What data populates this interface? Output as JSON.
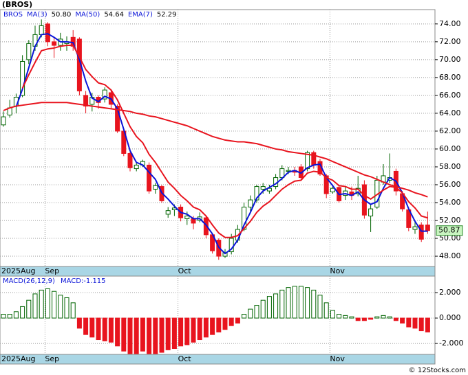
{
  "chart_data": [
    {
      "type": "candlestick",
      "title": "(BROS)",
      "symbol": "BROS",
      "categories": [
        "2025Aug",
        null,
        null,
        null,
        null,
        null,
        null,
        "Sep",
        null,
        null,
        null,
        null,
        null,
        null,
        null,
        null,
        null,
        null,
        null,
        null,
        null,
        null,
        null,
        null,
        null,
        null,
        null,
        null,
        "Oct",
        null,
        null,
        null,
        null,
        null,
        null,
        null,
        null,
        null,
        null,
        null,
        null,
        null,
        null,
        null,
        null,
        null,
        null,
        null,
        null,
        null,
        null,
        null,
        "Nov",
        null,
        null,
        null,
        null,
        null,
        null,
        null,
        null,
        null,
        null,
        null,
        null,
        null,
        null,
        null
      ],
      "open": [
        62.7,
        63.8,
        64.8,
        66,
        70,
        71.5,
        72.8,
        74,
        72,
        71.6,
        71.8,
        72.5,
        72.3,
        66,
        65,
        65.8,
        65.6,
        66.3,
        64.8,
        62,
        59.5,
        57.8,
        58.2,
        58.2,
        55.5,
        55.8,
        52.7,
        53.2,
        53.5,
        52.2,
        52.2,
        52,
        52.3,
        50.4,
        49.8,
        48,
        48.5,
        49.8,
        51,
        53.5,
        54.3,
        55.5,
        55.3,
        55.8,
        56.8,
        57.5,
        57.6,
        58,
        57.8,
        59.6,
        58.6,
        57,
        55.2,
        55.7,
        54.8,
        55.2,
        55,
        56,
        52.5,
        53.5,
        56.3,
        56.5,
        57.5,
        55,
        53.2,
        51,
        51.5,
        51.5
      ],
      "high": [
        64.2,
        65.5,
        66.2,
        70.5,
        72.2,
        73.8,
        74.5,
        74.2,
        72.5,
        73,
        72.6,
        73.3,
        72.5,
        66.5,
        66.3,
        66,
        66.9,
        66.5,
        65,
        62.3,
        59.8,
        58.5,
        58.8,
        58.5,
        56.2,
        56,
        53.5,
        53.8,
        53.8,
        53,
        52.5,
        52.9,
        52.5,
        50.5,
        50,
        48.8,
        50.5,
        51.5,
        54,
        54.8,
        56,
        56.2,
        56,
        57.2,
        58.2,
        58,
        58,
        58.3,
        59.8,
        59.8,
        58.9,
        57.2,
        56,
        56,
        55.8,
        55.8,
        57,
        56.5,
        53.8,
        57,
        58.3,
        59.5,
        57.8,
        55.3,
        53.5,
        52,
        51.8,
        53
      ],
      "low": [
        62.5,
        63.5,
        64,
        65.8,
        69.5,
        71,
        72.5,
        71.5,
        70.2,
        71,
        71,
        71,
        66,
        64,
        64.2,
        64.5,
        65.2,
        64.5,
        61.8,
        59.2,
        57.5,
        57.5,
        58,
        55,
        55,
        54,
        52.3,
        52.5,
        51.9,
        51.5,
        51,
        51.8,
        50,
        48.3,
        47.6,
        47.8,
        48.2,
        49.5,
        50.8,
        53,
        54,
        55,
        55,
        55.5,
        56.5,
        57.2,
        57,
        56.5,
        57.5,
        57.8,
        57,
        54.5,
        55,
        54,
        54.3,
        54.3,
        54.7,
        52.2,
        50.7,
        53.3,
        56,
        56.2,
        54.8,
        53,
        50.8,
        50.5,
        49.6,
        50.5
      ],
      "close": [
        63.6,
        64.6,
        65.8,
        69.8,
        71.8,
        72.8,
        73.8,
        72,
        71.6,
        72.3,
        72,
        71.5,
        66.5,
        64.8,
        65.8,
        65.2,
        66.6,
        65,
        62,
        59.5,
        57.9,
        58.2,
        58.6,
        55.3,
        55.9,
        54.2,
        53.1,
        53.4,
        52.3,
        52.5,
        51.7,
        52.4,
        50.4,
        48.6,
        48,
        48.4,
        50,
        51,
        53.5,
        54.3,
        55.8,
        55.8,
        55.6,
        56.8,
        57.8,
        57.6,
        57.4,
        56.8,
        59.6,
        58.2,
        57.2,
        55,
        55.6,
        54.2,
        55.3,
        54.8,
        55.6,
        52.6,
        53.3,
        56.5,
        57,
        56.8,
        55.3,
        53.3,
        51.2,
        51.3,
        49.9,
        50.87
      ],
      "last_price_label": "50.87",
      "up_color": "#006400",
      "down_color": "#e8141e",
      "lines": [
        {
          "name": "MA(3)",
          "value_label": "50.80",
          "color": "#0a14d8",
          "values": [
            null,
            null,
            64.7,
            66.7,
            69.1,
            71.5,
            72.8,
            72.9,
            72.5,
            72.0,
            72.0,
            71.9,
            70.0,
            67.6,
            65.7,
            65.3,
            65.9,
            65.6,
            64.5,
            62.2,
            59.8,
            58.5,
            58.2,
            57.4,
            56.6,
            55.1,
            54.4,
            53.6,
            52.9,
            52.7,
            52.2,
            52.2,
            51.5,
            50.5,
            49.0,
            48.3,
            48.8,
            49.8,
            51.5,
            52.9,
            54.5,
            55.3,
            55.7,
            56.1,
            56.7,
            57.4,
            57.6,
            57.3,
            57.9,
            58.2,
            58.3,
            56.8,
            55.9,
            54.9,
            55.0,
            54.8,
            55.2,
            54.3,
            53.8,
            54.1,
            55.6,
            56.8,
            56.4,
            55.1,
            53.3,
            51.9,
            50.8,
            50.8
          ]
        },
        {
          "name": "MA(50)",
          "value_label": "54.64",
          "color": "#e8141e",
          "values": [
            64.3,
            64.6,
            64.8,
            64.9,
            65.0,
            65.1,
            65.2,
            65.2,
            65.2,
            65.2,
            65.2,
            65.1,
            65.0,
            64.9,
            64.8,
            64.7,
            64.6,
            64.5,
            64.4,
            64.3,
            64.2,
            64.0,
            63.9,
            63.7,
            63.6,
            63.4,
            63.2,
            63.0,
            62.8,
            62.6,
            62.3,
            62.0,
            61.7,
            61.4,
            61.2,
            61.0,
            60.9,
            60.8,
            60.8,
            60.7,
            60.6,
            60.4,
            60.2,
            60.0,
            59.9,
            59.7,
            59.6,
            59.5,
            59.4,
            59.3,
            59.1,
            58.9,
            58.6,
            58.3,
            58.0,
            57.7,
            57.4,
            57.1,
            56.9,
            56.6,
            56.3,
            56.0,
            55.8,
            55.6,
            55.4,
            55.1,
            54.9,
            54.64
          ]
        },
        {
          "name": "EMA(7)",
          "value_label": "52.29",
          "color": "#e8141e",
          "values": [
            null,
            null,
            null,
            66.8,
            68.3,
            69.7,
            71.0,
            71.2,
            71.3,
            71.5,
            71.6,
            71.6,
            70.3,
            68.9,
            68.1,
            67.4,
            67.2,
            66.6,
            65.5,
            64.0,
            62.5,
            61.4,
            60.7,
            59.4,
            58.5,
            57.4,
            56.3,
            55.6,
            54.8,
            54.2,
            53.5,
            53.2,
            52.5,
            51.5,
            50.6,
            50.1,
            50.1,
            50.3,
            51.1,
            51.9,
            52.9,
            53.6,
            54.1,
            54.8,
            55.5,
            56.0,
            56.4,
            56.5,
            57.3,
            57.5,
            57.4,
            56.8,
            56.5,
            55.9,
            55.8,
            55.5,
            55.5,
            54.8,
            54.4,
            54.9,
            55.4,
            55.8,
            55.7,
            55.1,
            54.1,
            53.4,
            52.5,
            52.29
          ]
        }
      ],
      "ylim": [
        46.85,
        75.6
      ],
      "yticks": [
        {
          "value": 48,
          "label": "48.00"
        },
        {
          "value": 50,
          "label": "50.00"
        },
        {
          "value": 52,
          "label": "52.00"
        },
        {
          "value": 54,
          "label": "54.00"
        },
        {
          "value": 56,
          "label": "56.00"
        },
        {
          "value": 58,
          "label": "58.00"
        },
        {
          "value": 60,
          "label": "60.00"
        },
        {
          "value": 62,
          "label": "62.00"
        },
        {
          "value": 64,
          "label": "64.00"
        },
        {
          "value": 66,
          "label": "66.00"
        },
        {
          "value": 68,
          "label": "68.00"
        },
        {
          "value": 70,
          "label": "70.00"
        },
        {
          "value": 72,
          "label": "72.00"
        },
        {
          "value": 74,
          "label": "74.00"
        }
      ],
      "grid": true
    },
    {
      "type": "bar",
      "title": "MACD(26,12,9)",
      "value_text": "MACD:-1.115",
      "categories": [
        "2025Aug",
        null,
        null,
        null,
        null,
        null,
        null,
        "Sep",
        null,
        null,
        null,
        null,
        null,
        null,
        null,
        null,
        null,
        null,
        null,
        null,
        null,
        null,
        null,
        null,
        null,
        null,
        null,
        null,
        "Oct",
        null,
        null,
        null,
        null,
        null,
        null,
        null,
        null,
        null,
        null,
        null,
        null,
        null,
        null,
        null,
        null,
        null,
        null,
        null,
        null,
        null,
        null,
        null,
        "Nov",
        null,
        null,
        null,
        null,
        null,
        null,
        null,
        null,
        null,
        null,
        null,
        null,
        null,
        null,
        null
      ],
      "values": [
        0.3,
        0.3,
        0.5,
        0.9,
        1.4,
        1.9,
        2.2,
        2.3,
        2.1,
        1.8,
        1.6,
        1.2,
        -0.8,
        -1.3,
        -1.5,
        -1.7,
        -1.8,
        -1.9,
        -2.2,
        -2.6,
        -2.8,
        -2.8,
        -2.6,
        -2.8,
        -2.8,
        -2.7,
        -2.5,
        -2.4,
        -2.2,
        -2.1,
        -1.9,
        -1.7,
        -1.5,
        -1.3,
        -1.1,
        -0.9,
        -0.6,
        -0.4,
        0.3,
        0.7,
        1.0,
        1.4,
        1.7,
        1.9,
        2.2,
        2.4,
        2.5,
        2.5,
        2.4,
        2.2,
        1.8,
        1.2,
        0.6,
        0.3,
        0.2,
        0.1,
        -0.2,
        -0.2,
        -0.1,
        0.1,
        0.2,
        0.1,
        -0.2,
        -0.4,
        -0.7,
        -0.8,
        -1.0,
        -1.1
      ],
      "up_color": "#006400",
      "down_color": "#e8141e",
      "ylim": [
        -2.86,
        3.3
      ],
      "yticks": [
        {
          "value": 2,
          "label": "2.000"
        },
        {
          "value": 0,
          "label": "0.000"
        },
        {
          "value": -2,
          "label": "-2.000"
        }
      ],
      "grid": true
    }
  ],
  "footer": "© 12Stocks.com"
}
